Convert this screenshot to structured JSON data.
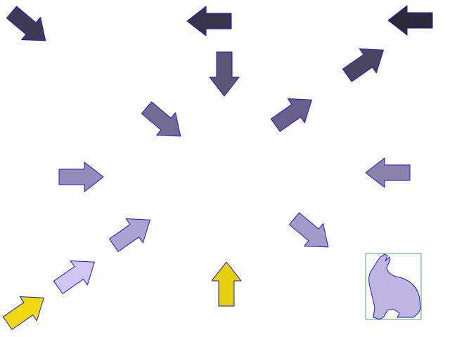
{
  "colors": {
    "background": "#ffffff",
    "outline": "#1a1acc",
    "target_box": "#4caf50"
  },
  "arrows": [
    {
      "name": "arrow-top-left",
      "direction": "down-right",
      "fill": "#3f3b55"
    },
    {
      "name": "arrow-top-center",
      "direction": "left",
      "fill": "#38344c"
    },
    {
      "name": "arrow-top-right",
      "direction": "left",
      "fill": "#2c2a3a"
    },
    {
      "name": "arrow-upper-right",
      "direction": "up-right",
      "fill": "#4a4660"
    },
    {
      "name": "arrow-center-down",
      "direction": "down",
      "fill": "#5c5677"
    },
    {
      "name": "arrow-center-left",
      "direction": "down-right",
      "fill": "#736b94"
    },
    {
      "name": "arrow-center-right",
      "direction": "up-right",
      "fill": "#68608a"
    },
    {
      "name": "arrow-mid-left",
      "direction": "right",
      "fill": "#958bb8"
    },
    {
      "name": "arrow-mid-right",
      "direction": "left",
      "fill": "#8b82ab"
    },
    {
      "name": "arrow-lower-center-left",
      "direction": "up-right",
      "fill": "#aaa2d1"
    },
    {
      "name": "arrow-lower-right",
      "direction": "down-right",
      "fill": "#a29ac8"
    },
    {
      "name": "arrow-lower-left",
      "direction": "up-right",
      "fill": "#cec6f0"
    },
    {
      "name": "arrow-bottom-center",
      "direction": "up",
      "fill": "#e3cf10"
    },
    {
      "name": "arrow-bottom-left",
      "direction": "up-right",
      "fill": "#eed911"
    }
  ],
  "target": {
    "name": "rabbit",
    "fill": "#c0b4e0"
  }
}
